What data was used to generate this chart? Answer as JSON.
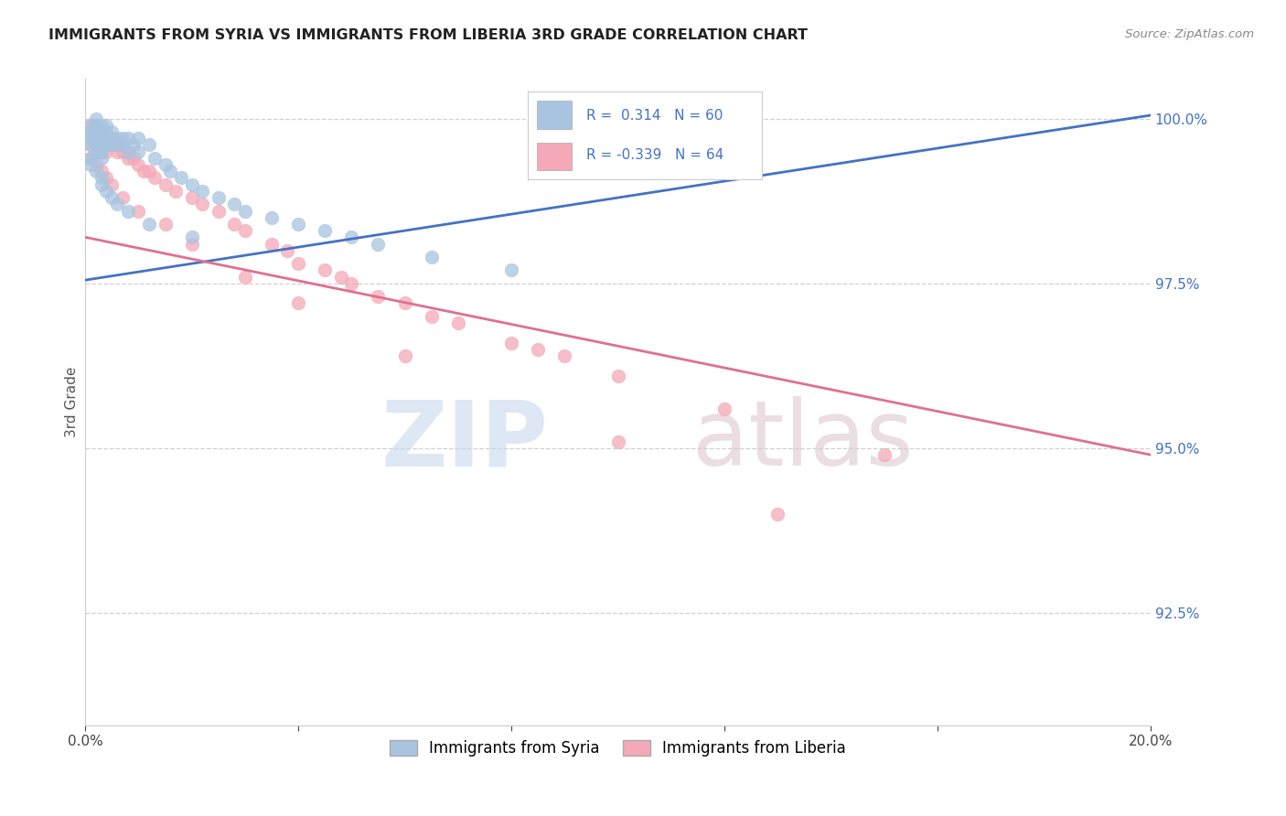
{
  "title": "IMMIGRANTS FROM SYRIA VS IMMIGRANTS FROM LIBERIA 3RD GRADE CORRELATION CHART",
  "source": "Source: ZipAtlas.com",
  "ylabel": "3rd Grade",
  "xlim": [
    0.0,
    0.2
  ],
  "ylim": [
    0.908,
    1.006
  ],
  "ytick_vals": [
    0.925,
    0.95,
    0.975,
    1.0
  ],
  "ytick_labels": [
    "92.5%",
    "95.0%",
    "97.5%",
    "100.0%"
  ],
  "syria_R": 0.314,
  "syria_N": 60,
  "liberia_R": -0.339,
  "liberia_N": 64,
  "syria_color": "#a8c4e0",
  "liberia_color": "#f4a8b8",
  "syria_line_color": "#4472c4",
  "liberia_line_color": "#e07090",
  "legend_label_syria": "Immigrants from Syria",
  "legend_label_liberia": "Immigrants from Liberia",
  "background_color": "#ffffff",
  "grid_color": "#d0d0d0",
  "title_color": "#222222",
  "right_axis_color": "#4472c4",
  "syria_trend_x0": 0.0,
  "syria_trend_y0": 0.9755,
  "syria_trend_x1": 0.2,
  "syria_trend_y1": 1.0005,
  "liberia_trend_x0": 0.0,
  "liberia_trend_y0": 0.982,
  "liberia_trend_x1": 0.2,
  "liberia_trend_y1": 0.949,
  "syria_x": [
    0.001,
    0.001,
    0.001,
    0.001,
    0.001,
    0.002,
    0.002,
    0.002,
    0.002,
    0.002,
    0.002,
    0.003,
    0.003,
    0.003,
    0.003,
    0.003,
    0.003,
    0.004,
    0.004,
    0.004,
    0.004,
    0.005,
    0.005,
    0.005,
    0.006,
    0.006,
    0.007,
    0.007,
    0.008,
    0.008,
    0.009,
    0.01,
    0.01,
    0.012,
    0.013,
    0.015,
    0.016,
    0.018,
    0.02,
    0.022,
    0.025,
    0.028,
    0.03,
    0.035,
    0.04,
    0.045,
    0.05,
    0.055,
    0.065,
    0.08,
    0.001,
    0.002,
    0.003,
    0.003,
    0.004,
    0.005,
    0.006,
    0.008,
    0.012,
    0.02
  ],
  "syria_y": [
    0.999,
    0.998,
    0.997,
    0.996,
    0.994,
    1.0,
    0.999,
    0.998,
    0.997,
    0.996,
    0.995,
    0.999,
    0.998,
    0.997,
    0.996,
    0.995,
    0.994,
    0.999,
    0.998,
    0.997,
    0.996,
    0.998,
    0.997,
    0.996,
    0.997,
    0.996,
    0.997,
    0.996,
    0.997,
    0.995,
    0.996,
    0.997,
    0.995,
    0.996,
    0.994,
    0.993,
    0.992,
    0.991,
    0.99,
    0.989,
    0.988,
    0.987,
    0.986,
    0.985,
    0.984,
    0.983,
    0.982,
    0.981,
    0.979,
    0.977,
    0.993,
    0.992,
    0.991,
    0.99,
    0.989,
    0.988,
    0.987,
    0.986,
    0.984,
    0.982
  ],
  "liberia_x": [
    0.001,
    0.001,
    0.001,
    0.001,
    0.002,
    0.002,
    0.002,
    0.002,
    0.003,
    0.003,
    0.003,
    0.003,
    0.004,
    0.004,
    0.004,
    0.005,
    0.005,
    0.006,
    0.006,
    0.007,
    0.008,
    0.008,
    0.009,
    0.01,
    0.011,
    0.012,
    0.013,
    0.015,
    0.017,
    0.02,
    0.022,
    0.025,
    0.028,
    0.03,
    0.035,
    0.038,
    0.04,
    0.045,
    0.048,
    0.05,
    0.055,
    0.06,
    0.065,
    0.07,
    0.08,
    0.085,
    0.09,
    0.1,
    0.12,
    0.15,
    0.001,
    0.002,
    0.003,
    0.004,
    0.005,
    0.007,
    0.01,
    0.015,
    0.02,
    0.03,
    0.04,
    0.06,
    0.1,
    0.13
  ],
  "liberia_y": [
    0.999,
    0.998,
    0.997,
    0.996,
    0.999,
    0.998,
    0.997,
    0.996,
    0.998,
    0.997,
    0.996,
    0.995,
    0.997,
    0.996,
    0.995,
    0.997,
    0.996,
    0.996,
    0.995,
    0.995,
    0.995,
    0.994,
    0.994,
    0.993,
    0.992,
    0.992,
    0.991,
    0.99,
    0.989,
    0.988,
    0.987,
    0.986,
    0.984,
    0.983,
    0.981,
    0.98,
    0.978,
    0.977,
    0.976,
    0.975,
    0.973,
    0.972,
    0.97,
    0.969,
    0.966,
    0.965,
    0.964,
    0.961,
    0.956,
    0.949,
    0.994,
    0.993,
    0.992,
    0.991,
    0.99,
    0.988,
    0.986,
    0.984,
    0.981,
    0.976,
    0.972,
    0.964,
    0.951,
    0.94
  ]
}
